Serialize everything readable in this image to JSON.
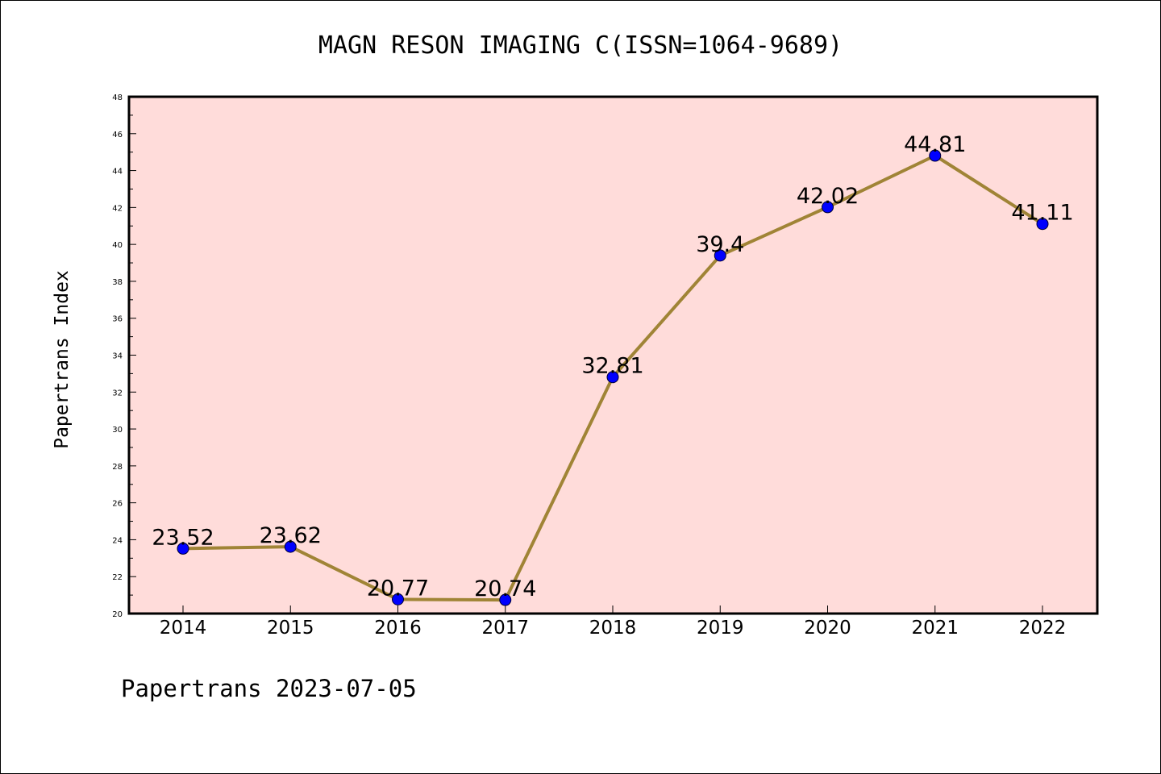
{
  "chart_data": {
    "type": "line",
    "title": "MAGN RESON IMAGING C(ISSN=1064-9689)",
    "ylabel": "Papertrans Index",
    "xlabel": "",
    "categories": [
      "2014",
      "2015",
      "2016",
      "2017",
      "2018",
      "2019",
      "2020",
      "2021",
      "2022"
    ],
    "values": [
      23.52,
      23.62,
      20.77,
      20.74,
      32.81,
      39.4,
      42.02,
      44.81,
      41.11
    ],
    "data_labels": [
      "23.52",
      "23.62",
      "20.77",
      "20.74",
      "32.81",
      "39.4",
      "42.02",
      "44.81",
      "41.11"
    ],
    "ylim": [
      20,
      48
    ],
    "yticks": [
      "20",
      "22",
      "24",
      "26",
      "28",
      "30",
      "32",
      "34",
      "36",
      "38",
      "40",
      "42",
      "44",
      "46",
      "48"
    ],
    "grid": false,
    "colors": {
      "plot_background": "#FFDCDA",
      "line": "#A08436",
      "marker": "#0000FF"
    }
  },
  "footer": "Papertrans 2023-07-05"
}
